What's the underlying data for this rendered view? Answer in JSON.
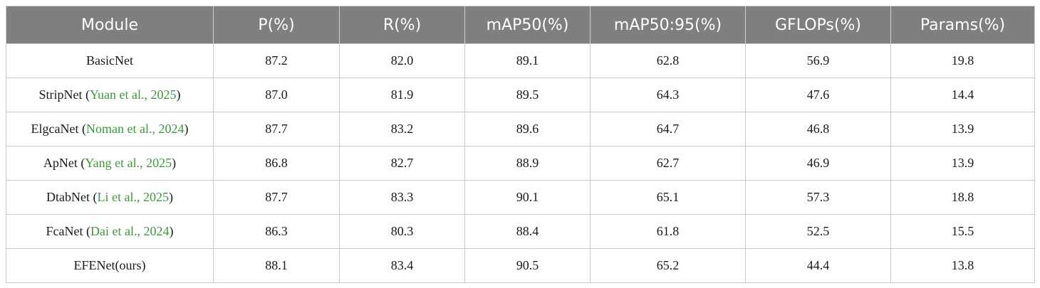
{
  "table": {
    "citation_color": "#3a9b3a",
    "header": [
      "Module",
      "P(%)",
      "R(%)",
      "mAP50(%)",
      "mAP50:95(%)",
      "GFLOPs(%)",
      "Params(%)"
    ],
    "rows": [
      {
        "module": [
          "BasicNet"
        ],
        "cells": [
          "87.2",
          "82.0",
          "89.1",
          "62.8",
          "56.9",
          "19.8"
        ]
      },
      {
        "module": [
          "StripNet (",
          "Yuan et al., 2025",
          ")"
        ],
        "cells": [
          "87.0",
          "81.9",
          "89.5",
          "64.3",
          "47.6",
          "14.4"
        ]
      },
      {
        "module": [
          "ElgcaNet (",
          "Noman et al., 2024",
          ")"
        ],
        "cells": [
          "87.7",
          "83.2",
          "89.6",
          "64.7",
          "46.8",
          "13.9"
        ]
      },
      {
        "module": [
          "ApNet (",
          "Yang et al., 2025",
          ")"
        ],
        "cells": [
          "86.8",
          "82.7",
          "88.9",
          "62.7",
          "46.9",
          "13.9"
        ]
      },
      {
        "module": [
          "DtabNet (",
          "Li et al., 2025",
          ")"
        ],
        "cells": [
          "87.7",
          "83.3",
          "90.1",
          "65.1",
          "57.3",
          "18.8"
        ]
      },
      {
        "module": [
          "FcaNet (",
          "Dai et al., 2024",
          ")"
        ],
        "cells": [
          "86.3",
          "80.3",
          "88.4",
          "61.8",
          "52.5",
          "15.5"
        ]
      },
      {
        "module": [
          "EFENet(ours)"
        ],
        "cells": [
          "88.1",
          "83.4",
          "90.5",
          "65.2",
          "44.4",
          "13.8"
        ]
      }
    ]
  }
}
